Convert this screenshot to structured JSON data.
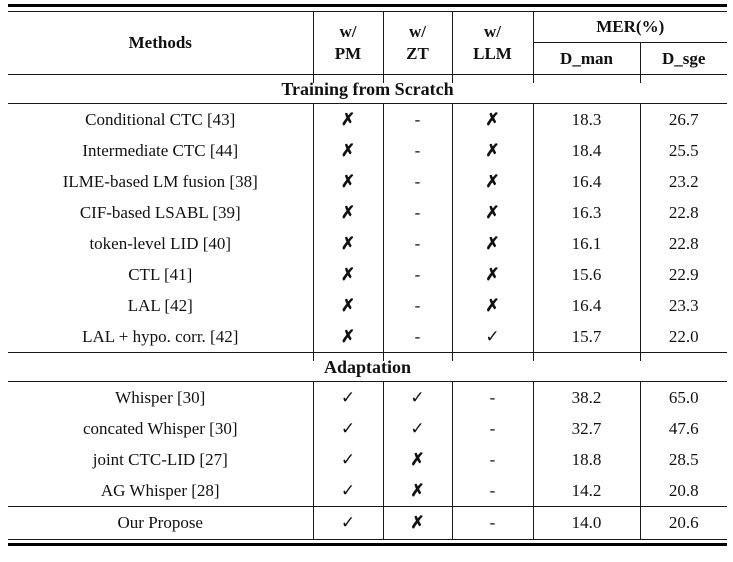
{
  "table": {
    "header": {
      "methods": "Methods",
      "col_pm": {
        "line1": "w/",
        "line2": "PM"
      },
      "col_zt": {
        "line1": "w/",
        "line2": "ZT"
      },
      "col_llm": {
        "line1": "w/",
        "line2": "LLM"
      },
      "mer": "MER(%)",
      "d_man": "D_man",
      "d_sge": "D_sge"
    },
    "sections": [
      {
        "title": "Training from Scratch",
        "rows": [
          {
            "method": "Conditional CTC [43]",
            "pm": "✗",
            "zt": "-",
            "llm": "✗",
            "d_man": "18.3",
            "d_sge": "26.7"
          },
          {
            "method": "Intermediate CTC [44]",
            "pm": "✗",
            "zt": "-",
            "llm": "✗",
            "d_man": "18.4",
            "d_sge": "25.5"
          },
          {
            "method": "ILME-based LM fusion [38]",
            "pm": "✗",
            "zt": "-",
            "llm": "✗",
            "d_man": "16.4",
            "d_sge": "23.2"
          },
          {
            "method": "CIF-based LSABL [39]",
            "pm": "✗",
            "zt": "-",
            "llm": "✗",
            "d_man": "16.3",
            "d_sge": "22.8"
          },
          {
            "method": "token-level LID [40]",
            "pm": "✗",
            "zt": "-",
            "llm": "✗",
            "d_man": "16.1",
            "d_sge": "22.8"
          },
          {
            "method": "CTL [41]",
            "pm": "✗",
            "zt": "-",
            "llm": "✗",
            "d_man": "15.6",
            "d_sge": "22.9"
          },
          {
            "method": "LAL [42]",
            "pm": "✗",
            "zt": "-",
            "llm": "✗",
            "d_man": "16.4",
            "d_sge": "23.3"
          },
          {
            "method": "LAL + hypo. corr. [42]",
            "pm": "✗",
            "zt": "-",
            "llm": "✓",
            "d_man": "15.7",
            "d_sge": "22.0"
          }
        ]
      },
      {
        "title": "Adaptation",
        "rows": [
          {
            "method": "Whisper [30]",
            "pm": "✓",
            "zt": "✓",
            "llm": "-",
            "d_man": "38.2",
            "d_sge": "65.0"
          },
          {
            "method": "concated Whisper [30]",
            "pm": "✓",
            "zt": "✓",
            "llm": "-",
            "d_man": "32.7",
            "d_sge": "47.6"
          },
          {
            "method": "joint CTC-LID [27]",
            "pm": "✓",
            "zt": "✗",
            "llm": "-",
            "d_man": "18.8",
            "d_sge": "28.5"
          },
          {
            "method": "AG Whisper [28]",
            "pm": "✓",
            "zt": "✗",
            "llm": "-",
            "d_man": "14.2",
            "d_sge": "20.8"
          }
        ]
      }
    ],
    "final_row": {
      "method": "Our Propose",
      "pm": "✓",
      "zt": "✗",
      "llm": "-",
      "d_man": "14.0",
      "d_sge": "20.6"
    }
  }
}
